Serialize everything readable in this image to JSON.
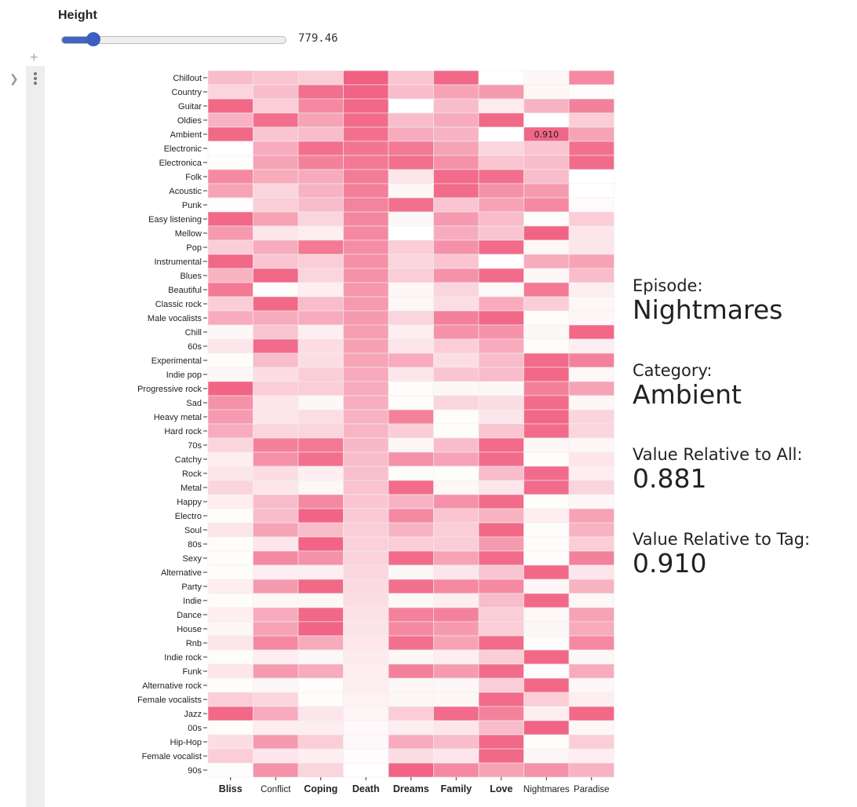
{
  "slider": {
    "label": "Height",
    "value_text": "779.46",
    "fraction": 0.14
  },
  "info": {
    "episode_key": "Episode:",
    "episode_value": "Nightmares",
    "category_key": "Category:",
    "category_value": "Ambient",
    "rel_all_key": "Value Relative to All:",
    "rel_all_value": "0.881",
    "rel_tag_key": "Value Relative to Tag:",
    "rel_tag_value": "0.910"
  },
  "chart_data": {
    "type": "heatmap",
    "title": "",
    "xlabel": "",
    "ylabel": "",
    "x": [
      "Bliss",
      "Conflict",
      "Coping",
      "Death",
      "Dreams",
      "Family",
      "Love",
      "Nightmares",
      "Paradise"
    ],
    "x_bold": [
      "Bliss",
      "Coping",
      "Death",
      "Dreams",
      "Family",
      "Love"
    ],
    "y": [
      "Chillout",
      "Country",
      "Guitar",
      "Oldies",
      "Ambient",
      "Electronic",
      "Electronica",
      "Folk",
      "Acoustic",
      "Punk",
      "Easy listening",
      "Mellow",
      "Pop",
      "Instrumental",
      "Blues",
      "Beautiful",
      "Classic rock",
      "Male vocalists",
      "Chill",
      "60s",
      "Experimental",
      "Indie pop",
      "Progressive rock",
      "Sad",
      "Heavy metal",
      "Hard rock",
      "70s",
      "Catchy",
      "Rock",
      "Metal",
      "Happy",
      "Electro",
      "Soul",
      "80s",
      "Sexy",
      "Alternative",
      "Party",
      "Indie",
      "Dance",
      "House",
      "Rnb",
      "Indie rock",
      "Funk",
      "Alternative rock",
      "Female vocalists",
      "Jazz",
      "00s",
      "Hip-Hop",
      "Female vocalist",
      "90s"
    ],
    "values": [
      [
        0.4,
        0.35,
        0.3,
        0.95,
        0.35,
        0.9,
        0.0,
        0.05,
        0.7
      ],
      [
        0.25,
        0.4,
        0.85,
        0.92,
        0.4,
        0.55,
        0.6,
        0.05,
        0.02
      ],
      [
        0.9,
        0.3,
        0.7,
        0.9,
        0.0,
        0.4,
        0.12,
        0.45,
        0.75
      ],
      [
        0.45,
        0.85,
        0.55,
        0.88,
        0.4,
        0.5,
        0.9,
        0.0,
        0.3
      ],
      [
        0.9,
        0.35,
        0.4,
        0.85,
        0.5,
        0.45,
        0.0,
        0.91,
        0.55
      ],
      [
        0.0,
        0.5,
        0.85,
        0.82,
        0.8,
        0.55,
        0.25,
        0.35,
        0.85
      ],
      [
        0.02,
        0.55,
        0.75,
        0.8,
        0.85,
        0.65,
        0.35,
        0.4,
        0.88
      ],
      [
        0.7,
        0.5,
        0.5,
        0.78,
        0.15,
        0.88,
        0.85,
        0.4,
        0.0
      ],
      [
        0.55,
        0.25,
        0.45,
        0.76,
        0.05,
        0.88,
        0.65,
        0.6,
        0.0
      ],
      [
        0.02,
        0.3,
        0.4,
        0.74,
        0.85,
        0.35,
        0.55,
        0.7,
        0.03
      ],
      [
        0.9,
        0.55,
        0.25,
        0.72,
        0.05,
        0.6,
        0.4,
        0.02,
        0.3
      ],
      [
        0.6,
        0.15,
        0.1,
        0.7,
        0.0,
        0.5,
        0.35,
        0.92,
        0.15
      ],
      [
        0.3,
        0.5,
        0.8,
        0.68,
        0.3,
        0.65,
        0.88,
        0.05,
        0.15
      ],
      [
        0.9,
        0.35,
        0.3,
        0.66,
        0.25,
        0.35,
        0.0,
        0.5,
        0.55
      ],
      [
        0.45,
        0.9,
        0.25,
        0.64,
        0.3,
        0.65,
        0.88,
        0.05,
        0.4
      ],
      [
        0.8,
        0.02,
        0.1,
        0.62,
        0.05,
        0.25,
        0.05,
        0.8,
        0.1
      ],
      [
        0.3,
        0.9,
        0.4,
        0.6,
        0.05,
        0.2,
        0.5,
        0.3,
        0.05
      ],
      [
        0.5,
        0.5,
        0.5,
        0.6,
        0.25,
        0.75,
        0.9,
        0.02,
        0.05
      ],
      [
        0.05,
        0.35,
        0.1,
        0.58,
        0.1,
        0.65,
        0.65,
        0.05,
        0.9
      ],
      [
        0.15,
        0.88,
        0.2,
        0.56,
        0.15,
        0.3,
        0.5,
        0.02,
        0.1
      ],
      [
        0.02,
        0.4,
        0.2,
        0.54,
        0.5,
        0.2,
        0.4,
        0.88,
        0.75
      ],
      [
        0.05,
        0.2,
        0.3,
        0.52,
        0.15,
        0.35,
        0.4,
        0.9,
        0.05
      ],
      [
        0.92,
        0.3,
        0.3,
        0.5,
        0.02,
        0.05,
        0.05,
        0.75,
        0.55
      ],
      [
        0.65,
        0.15,
        0.05,
        0.48,
        0.02,
        0.25,
        0.2,
        0.88,
        0.05
      ],
      [
        0.6,
        0.15,
        0.2,
        0.46,
        0.75,
        0.02,
        0.15,
        0.9,
        0.25
      ],
      [
        0.5,
        0.25,
        0.25,
        0.44,
        0.3,
        0.02,
        0.35,
        0.88,
        0.25
      ],
      [
        0.25,
        0.75,
        0.8,
        0.42,
        0.05,
        0.4,
        0.88,
        0.05,
        0.05
      ],
      [
        0.1,
        0.65,
        0.85,
        0.4,
        0.65,
        0.55,
        0.88,
        0.02,
        0.15
      ],
      [
        0.15,
        0.2,
        0.1,
        0.38,
        0.02,
        0.02,
        0.4,
        0.88,
        0.1
      ],
      [
        0.25,
        0.15,
        0.05,
        0.36,
        0.88,
        0.05,
        0.15,
        0.88,
        0.25
      ],
      [
        0.1,
        0.4,
        0.7,
        0.34,
        0.45,
        0.65,
        0.88,
        0.02,
        0.05
      ],
      [
        0.02,
        0.4,
        0.92,
        0.32,
        0.7,
        0.35,
        0.45,
        0.1,
        0.55
      ],
      [
        0.15,
        0.55,
        0.4,
        0.3,
        0.45,
        0.3,
        0.9,
        0.02,
        0.45
      ],
      [
        0.02,
        0.15,
        0.92,
        0.28,
        0.3,
        0.3,
        0.6,
        0.02,
        0.3
      ],
      [
        0.02,
        0.7,
        0.65,
        0.26,
        0.88,
        0.55,
        0.88,
        0.02,
        0.75
      ],
      [
        0.02,
        0.1,
        0.1,
        0.24,
        0.05,
        0.15,
        0.35,
        0.9,
        0.15
      ],
      [
        0.1,
        0.6,
        0.9,
        0.22,
        0.85,
        0.7,
        0.7,
        0.05,
        0.45
      ],
      [
        0.02,
        0.05,
        0.05,
        0.2,
        0.05,
        0.1,
        0.4,
        0.9,
        0.05
      ],
      [
        0.1,
        0.5,
        0.9,
        0.18,
        0.75,
        0.75,
        0.3,
        0.05,
        0.55
      ],
      [
        0.05,
        0.55,
        0.92,
        0.16,
        0.7,
        0.6,
        0.3,
        0.05,
        0.5
      ],
      [
        0.15,
        0.7,
        0.5,
        0.14,
        0.85,
        0.55,
        0.88,
        0.02,
        0.7
      ],
      [
        0.02,
        0.1,
        0.05,
        0.12,
        0.05,
        0.1,
        0.3,
        0.9,
        0.05
      ],
      [
        0.15,
        0.6,
        0.5,
        0.1,
        0.75,
        0.6,
        0.88,
        0.02,
        0.5
      ],
      [
        0.02,
        0.05,
        0.02,
        0.1,
        0.05,
        0.05,
        0.3,
        0.9,
        0.05
      ],
      [
        0.3,
        0.25,
        0.02,
        0.08,
        0.05,
        0.05,
        0.88,
        0.3,
        0.1
      ],
      [
        0.9,
        0.5,
        0.15,
        0.06,
        0.3,
        0.88,
        0.75,
        0.1,
        0.9
      ],
      [
        0.02,
        0.1,
        0.1,
        0.04,
        0.1,
        0.15,
        0.4,
        0.92,
        0.05
      ],
      [
        0.2,
        0.6,
        0.3,
        0.04,
        0.5,
        0.4,
        0.9,
        0.02,
        0.3
      ],
      [
        0.3,
        0.15,
        0.1,
        0.02,
        0.2,
        0.15,
        0.9,
        0.05,
        0.1
      ],
      [
        0.02,
        0.65,
        0.25,
        0.01,
        0.92,
        0.7,
        0.55,
        0.65,
        0.45
      ]
    ],
    "annotation": {
      "row": "Ambient",
      "col": "Nightmares",
      "text": "0.910"
    },
    "color_low": "#ffffff",
    "color_high": "#f0577a",
    "grid": false
  }
}
